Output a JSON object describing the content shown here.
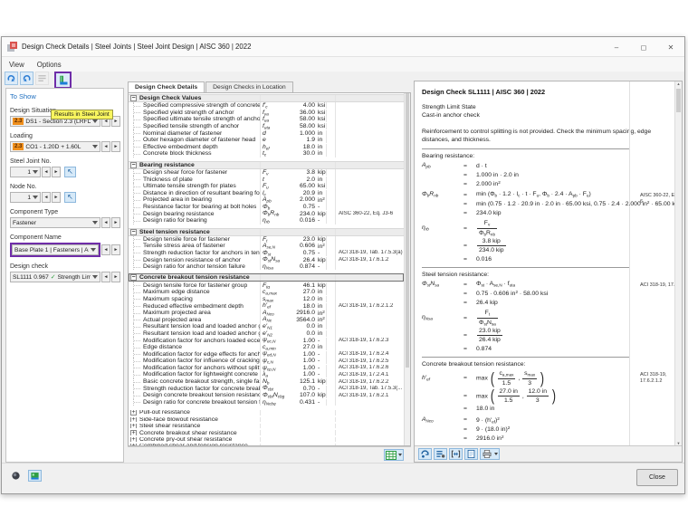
{
  "window": {
    "title": "Design Check Details | Steel Joints | Steel Joint Design | AISC 360 | 2022",
    "menu": [
      "View",
      "Options"
    ],
    "buttons": {
      "minimize": "–",
      "maximize": "◻",
      "close": "✕"
    }
  },
  "toolbar": {
    "tooltip": "Results in Steel Joint"
  },
  "left": {
    "header": "To Show",
    "design_situation": {
      "label": "Design Situation",
      "badge": "2.3",
      "value": "DS1 - Section 2.3 (LRFD), 1. to 5."
    },
    "loading": {
      "label": "Loading",
      "badge": "2.3",
      "value": "CO1 - 1.20D + 1.60L"
    },
    "steel_joint": {
      "label": "Steel Joint No.",
      "value": "1"
    },
    "node": {
      "label": "Node No.",
      "value": "1"
    },
    "component_type": {
      "label": "Component Type",
      "value": "Fastener"
    },
    "component_name": {
      "label": "Component Name",
      "value": "Base Plate 1 | Fasteners | Anchor 1, 1"
    },
    "design_check": {
      "label": "Design check",
      "code": "SL1111",
      "ratio": "0.967",
      "check": "✓",
      "value": "Strength Limit St..."
    }
  },
  "tabs": [
    {
      "label": "Design Check Details",
      "active": true
    },
    {
      "label": "Design Checks in Location",
      "active": false
    }
  ],
  "table": {
    "sections": [
      {
        "title": "Design Check Values",
        "expanded": true,
        "selected": false,
        "rows": [
          [
            "Specified compressive strength of concrete",
            "f'_{c}",
            "4.00",
            "ksi",
            ""
          ],
          [
            "Specified yield strength of anchor",
            "f_{ya}",
            "36.00",
            "ksi",
            ""
          ],
          [
            "Specified ultimate tensile strength of anchor",
            "f_{ua}",
            "58.00",
            "ksi",
            ""
          ],
          [
            "Specified tensile strength of anchor",
            "f_{uta}",
            "58.00",
            "ksi",
            ""
          ],
          [
            "Nominal diameter of fastener",
            "d",
            "1.000",
            "in",
            ""
          ],
          [
            "Outer hexagon diameter of fastener head",
            "e",
            "1.9",
            "in",
            ""
          ],
          [
            "Effective embedment depth",
            "h_{ef}",
            "18.0",
            "in",
            ""
          ],
          [
            "Concrete block thickness",
            "t_{c}",
            "30.0",
            "in",
            ""
          ]
        ]
      },
      {
        "title": "Bearing resistance",
        "expanded": true,
        "selected": false,
        "rows": [
          [
            "Design shear force for fastener",
            "F_{v}",
            "3.8",
            "kip",
            ""
          ],
          [
            "Thickness of plate",
            "t",
            "2.0",
            "in",
            ""
          ],
          [
            "Ultimate tensile strength for plates",
            "F_{u}",
            "65.00",
            "ksi",
            ""
          ],
          [
            "Distance in direction of resultant bearing force",
            "l_{c}",
            "20.9",
            "in",
            ""
          ],
          [
            "Projected area in bearing",
            "A_{pb}",
            "2.000",
            "in^{2}",
            ""
          ],
          [
            "Resistance factor for bearing at bolt holes",
            "Φ_{b}",
            "0.75",
            "-",
            ""
          ],
          [
            "Design bearing resistance",
            "Φ_{b}R_{nb}",
            "234.0",
            "kip",
            "AISC 360-22, Eq. J3-6"
          ],
          [
            "Design ratio for bearing",
            "η_{rb}",
            "0.016",
            "-",
            ""
          ]
        ]
      },
      {
        "title": "Steel tension resistance",
        "expanded": true,
        "selected": false,
        "rows": [
          [
            "Design tensile force for fastener",
            "F_{t}",
            "23.0",
            "kip",
            ""
          ],
          [
            "Tensile stress area of fastener",
            "A_{se,N}",
            "0.606",
            "in^{2}",
            ""
          ],
          [
            "Strength reduction factor for anchors in tension",
            "Φ_{st}",
            "0.75",
            "-",
            "ACI 318-19, Tab. 17.5.3(a)"
          ],
          [
            "Design tension resistance of anchor",
            "Φ_{st}N_{sa}",
            "26.4",
            "kip",
            "ACI 318-19, 17.6.1.2"
          ],
          [
            "Design ratio for anchor tension failure",
            "η_{Nsa}",
            "0.874",
            "-",
            ""
          ]
        ]
      },
      {
        "title": "Concrete breakout tension resistance",
        "expanded": true,
        "selected": true,
        "rows": [
          [
            "Design tensile force for fastener group",
            "F_{tg}",
            "46.1",
            "kip",
            ""
          ],
          [
            "Maximum edge distance",
            "c_{a,max}",
            "27.0",
            "in",
            ""
          ],
          [
            "Maximum spacing",
            "s_{max}",
            "12.0",
            "in",
            ""
          ],
          [
            "Reduced effective embedment depth",
            "h'_{ef}",
            "18.0",
            "in",
            "ACI 318-19, 17.6.2.1.2"
          ],
          [
            "Maximum projected area",
            "A_{Nco}",
            "2916.0",
            "in^{2}",
            ""
          ],
          [
            "Actual projected area",
            "A_{Nc}",
            "3564.0",
            "in^{2}",
            ""
          ],
          [
            "Resultant tension load and loaded anchor gro...",
            "e'_{N1}",
            "0.0",
            "in",
            ""
          ],
          [
            "Resultant tension load and loaded anchor gro...",
            "e'_{N2}",
            "0.0",
            "in",
            ""
          ],
          [
            "Modification factor for anchors loaded eccentri...",
            "ψ_{ec,N}",
            "1.00",
            "-",
            "ACI 318-19, 17.6.2.3"
          ],
          [
            "Edge distance",
            "c_{a,min}",
            "27.0",
            "in",
            ""
          ],
          [
            "Modification factor for edge effects for anchor...",
            "ψ_{ed,N}",
            "1.00",
            "-",
            "ACI 318-19, 17.6.2.4"
          ],
          [
            "Modification factor for influence of cracking",
            "ψ_{c,N}",
            "1.00",
            "-",
            "ACI 318-19, 17.6.2.5"
          ],
          [
            "Modification factor for anchors without splittin...",
            "ψ_{cp,N}",
            "1.00",
            "-",
            "ACI 318-19, 17.6.2.6"
          ],
          [
            "Modification factor for lightweight concrete",
            "λ_{a}",
            "1.00",
            "-",
            "ACI 318-19, 17.2.4.1"
          ],
          [
            "Basic concrete breakout strength, single fasten...",
            "N_{b}",
            "125.1",
            "kip",
            "ACI 318-19, 17.6.2.2"
          ],
          [
            "Strength reduction factor for concrete breakou...",
            "Φ_{cbt}",
            "0.70",
            "-",
            "ACI 318-19, Tab. 17.5.3(..."
          ],
          [
            "Design concrete breakout tension resistance",
            "Φ_{cbt}N_{cbg}",
            "107.0",
            "kip",
            "ACI 318-19, 17.6.2.1"
          ],
          [
            "Design ratio for concrete breakout tension fail...",
            "η_{Ncbg}",
            "0.431",
            "-",
            ""
          ]
        ]
      },
      {
        "title": "Pull-out resistance",
        "expanded": false,
        "selected": false,
        "rows": []
      },
      {
        "title": "Side-face blowout resistance",
        "expanded": false,
        "selected": false,
        "rows": []
      },
      {
        "title": "Steel shear resistance",
        "expanded": false,
        "selected": false,
        "rows": []
      },
      {
        "title": "Concrete breakout shear resistance",
        "expanded": false,
        "selected": false,
        "rows": []
      },
      {
        "title": "Concrete pry-out shear resistance",
        "expanded": false,
        "selected": false,
        "rows": []
      },
      {
        "title": "Combined shear and tension resistance",
        "expanded": false,
        "selected": false,
        "rows": []
      }
    ]
  },
  "details": {
    "title": "Design Check SL1111 | AISC 360 | 2022",
    "subtitle1": "Strength Limit State",
    "subtitle2": "Cast-in anchor check",
    "note": "Reinforcement to control splitting is not provided. Check the minimum spacing, edge distances, and thickness.",
    "blocks": [
      {
        "heading": "Bearing resistance:",
        "formulas": [
          {
            "lhs": "A_{pb}",
            "ref": "",
            "lines": [
              "d · t",
              "1.000 in · 2.0 in",
              "2.000 in^{2}"
            ]
          },
          {
            "lhs": "Φ_{b}R_{nb}",
            "ref": "AISC 360-22, Eq. J3-6",
            "lines": [
              "min (Φ_{b} · 1.2 · l_{c} · t · F_{u},  Φ_{b} · 2.4 · A_{pb} · F_{u})",
              "min (0.75 · 1.2 · 20.9 in · 2.0 in · 65.00 ksi,  0.75 · 2.4 · 2.000 in^{2} · 65.00 ksi)",
              "234.0 kip"
            ]
          },
          {
            "lhs": "η_{rb}",
            "ref": "",
            "lines": [
              "frac(F_{v};Φ_{b}R_{nb})",
              "frac(3.8 kip;234.0 kip)",
              "0.016"
            ]
          }
        ]
      },
      {
        "heading": "Steel tension resistance:",
        "formulas": [
          {
            "lhs": "Φ_{st}N_{sa}",
            "ref": "ACI 318-19, 17.6.1.2",
            "lines": [
              "Φ_{st} · A_{se,N} · f_{uta}",
              "0.75 · 0.606 in^{2} · 58.00 ksi",
              "26.4 kip"
            ]
          },
          {
            "lhs": "η_{Nsa}",
            "ref": "",
            "lines": [
              "frac(F_{t};Φ_{st}N_{sa})",
              "frac(23.0 kip;26.4 kip)",
              "0.874"
            ]
          }
        ]
      },
      {
        "heading": "Concrete breakout tension resistance:",
        "formulas": [
          {
            "lhs": "h'_{ef}",
            "ref": "ACI 318-19, 17.6.2.1.2",
            "lines": [
              "max (( frac(c_{a,max};1.5) ,  frac(s_{max};3) ))",
              "max (( frac(27.0 in;1.5) ,  frac(12.0 in;3) ))",
              "18.0 in"
            ]
          },
          {
            "lhs": "A_{Nco}",
            "ref": "",
            "lines": [
              "9 · (h'_{ef})^{2}",
              "9 · (18.0 in)^{2}",
              "2916.0 in^{2}"
            ]
          },
          {
            "lhs": "ψ_{ec,N}",
            "ref": "ACI 318-19, 17.6.2.3",
            "lines": [
              "min (( frac(1;1 + frac(e'_{N1};1.5 · h'_{ef})) , 1 )) · min (( frac(1;1 + frac(e'_{N2};1.5 · h'_{ef})) , 1 ))",
              "min (( frac(1;1 + frac(0.0 in;1.5 · 18.0 in)) , 1 )) · min (( frac(1;1 + frac(0.0 in;1.5 · 18.0 in)) , 1 ))"
            ]
          }
        ]
      }
    ]
  },
  "footer": {
    "close": "Close"
  },
  "glyphs": {
    "prev": "◄",
    "next": "►",
    "pick": "↖",
    "minus": "−",
    "plus": "+",
    "up": "▲",
    "down": "▼"
  }
}
